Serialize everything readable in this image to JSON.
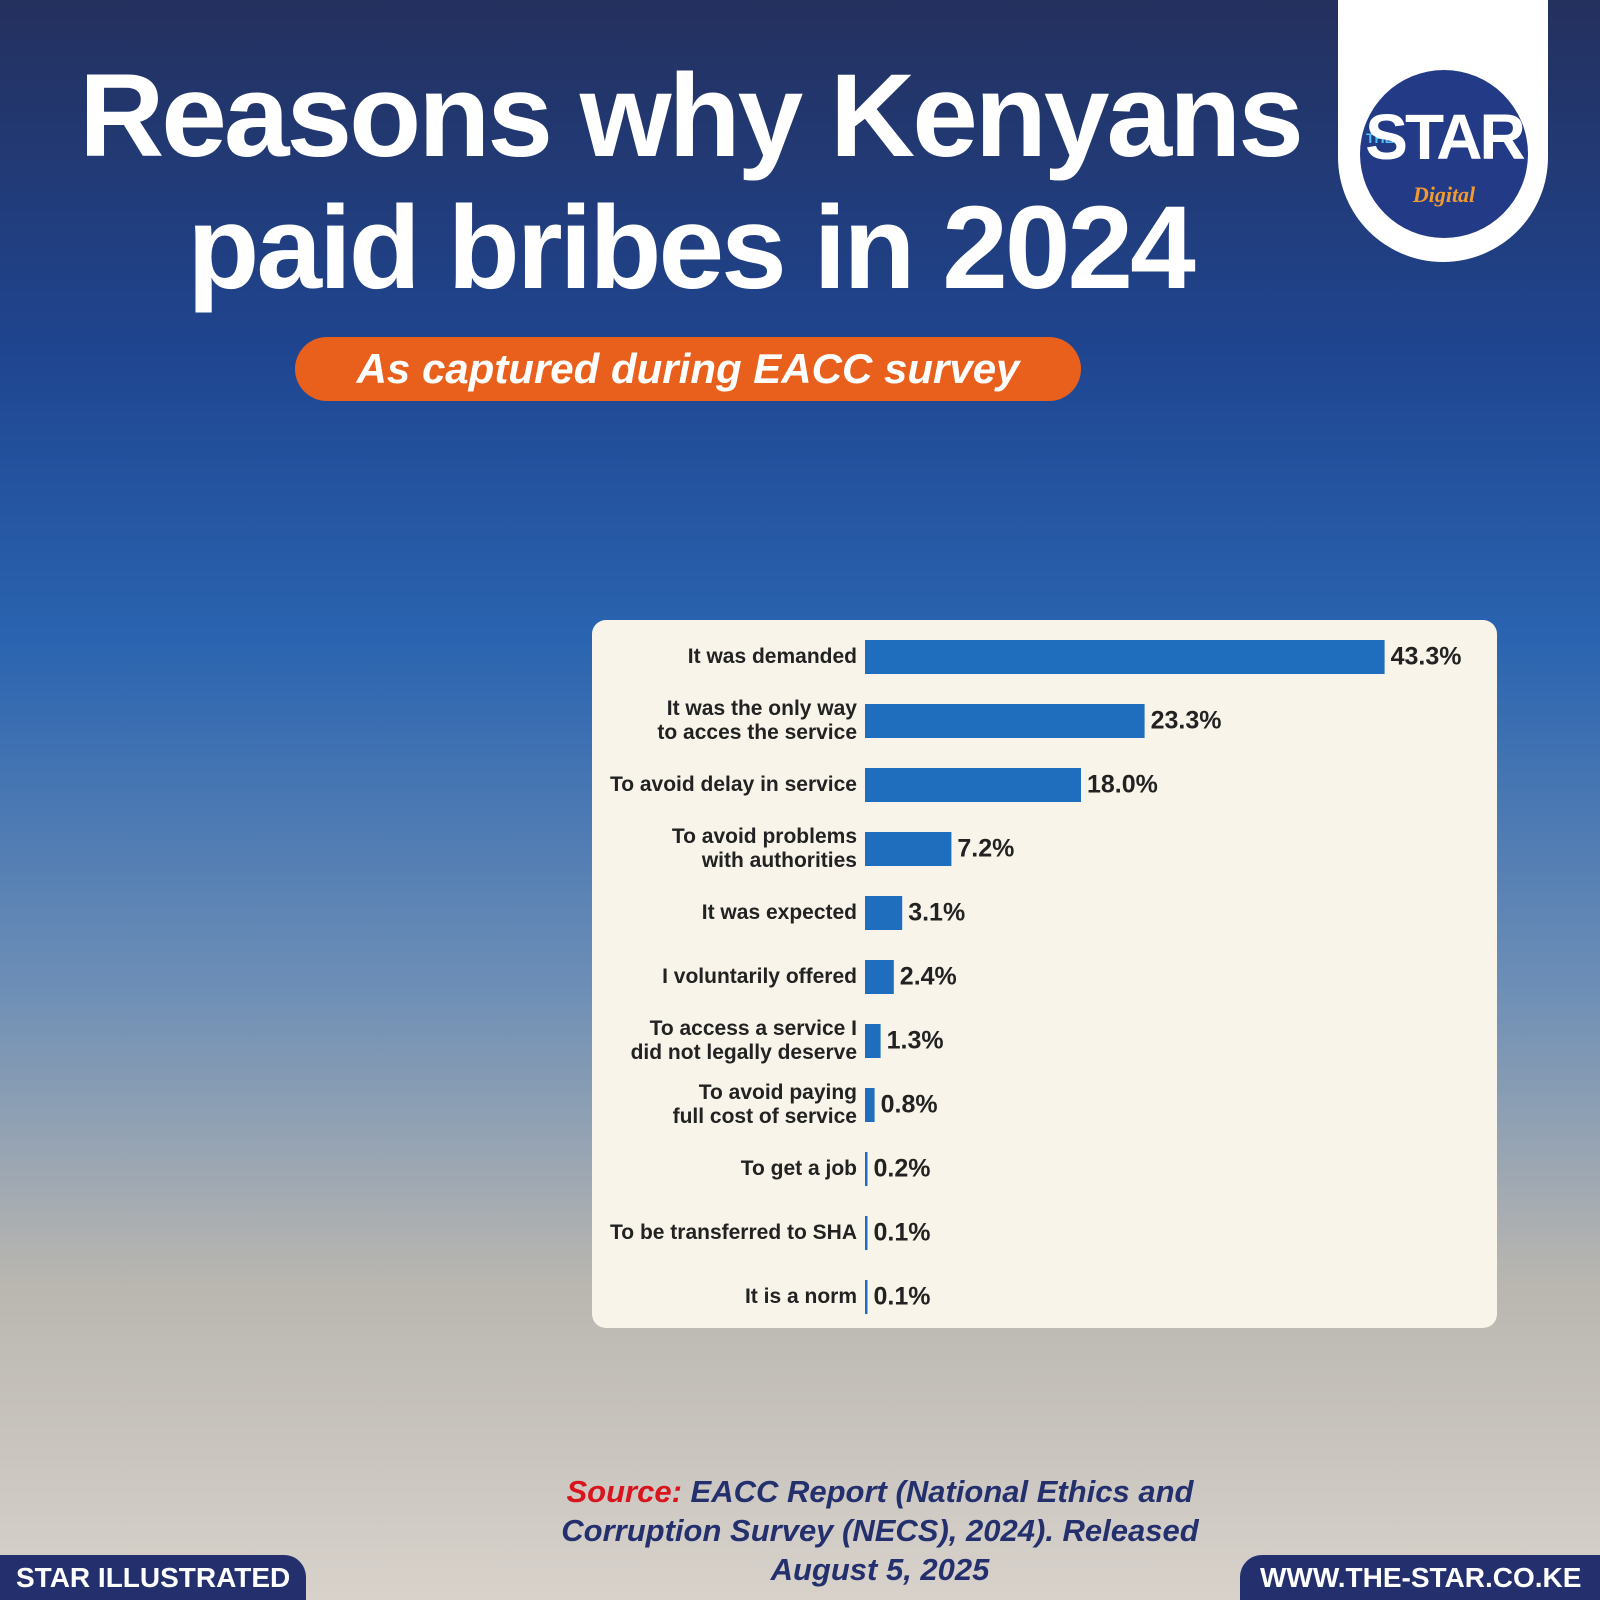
{
  "chart_data": {
    "type": "bar",
    "orientation": "horizontal",
    "title": "Reasons why Kenyans paid bribes in 2024",
    "subtitle": "As captured during EACC survey",
    "categories": [
      "It was demanded",
      "It was the only way\nto acces the service",
      "To avoid delay in service",
      "To avoid problems\nwith authorities",
      "It was expected",
      "I voluntarily offered",
      "To access a service I\ndid not legally deserve",
      "To avoid paying\nfull cost of service",
      "To get a job",
      "To be transferred to SHA",
      "It is a norm"
    ],
    "values": [
      43.3,
      23.3,
      18.0,
      7.2,
      3.1,
      2.4,
      1.3,
      0.8,
      0.2,
      0.1,
      0.1
    ],
    "value_labels": [
      "43.3%",
      "23.3%",
      "18.0%",
      "7.2%",
      "3.1%",
      "2.4%",
      "1.3%",
      "0.8%",
      "0.2%",
      "0.1%",
      "0.1%"
    ],
    "color": "#1e6ebd",
    "source_label": "Source:",
    "source": "EACC Report (National Ethics and Corruption Survey (NECS), 2024). Released August 5, 2025",
    "credit": "STAR ILLUSTRATED",
    "website": "WWW.THE-STAR.CO.KE",
    "logo": {
      "small": "THE",
      "main": "STAR",
      "sub": "Digital"
    }
  }
}
